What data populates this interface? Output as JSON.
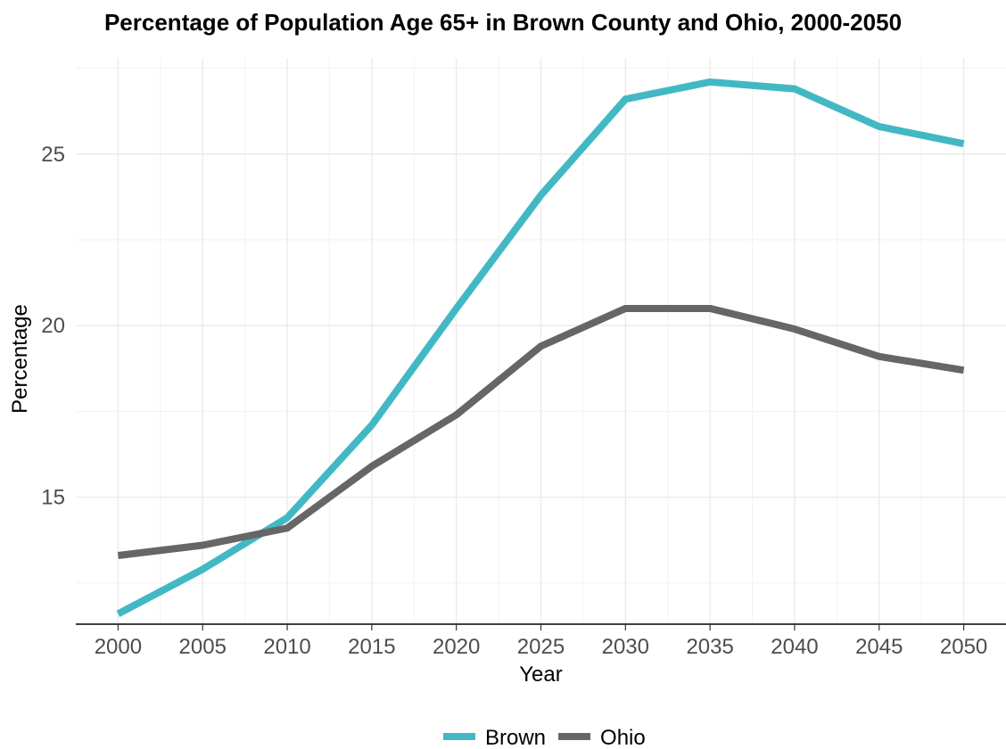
{
  "chart_data": {
    "type": "line",
    "title": "Percentage of Population Age 65+ in Brown County and Ohio, 2000-2050",
    "xlabel": "Year",
    "ylabel": "Percentage",
    "x": [
      2000,
      2005,
      2010,
      2015,
      2020,
      2025,
      2030,
      2035,
      2040,
      2045,
      2050
    ],
    "x_ticks": [
      "2000",
      "2005",
      "2010",
      "2015",
      "2020",
      "2025",
      "2030",
      "2035",
      "2040",
      "2045",
      "2050"
    ],
    "y_ticks": [
      "15",
      "20",
      "25"
    ],
    "xlim": [
      1997.5,
      2052.5
    ],
    "ylim": [
      11.3,
      27.8
    ],
    "grid": true,
    "legend_position": "bottom",
    "series": [
      {
        "name": "Brown",
        "color": "#43B8C5",
        "values": [
          11.6,
          12.9,
          14.4,
          17.1,
          20.5,
          23.8,
          26.6,
          27.1,
          26.9,
          25.8,
          25.3
        ]
      },
      {
        "name": "Ohio",
        "color": "#666666",
        "values": [
          13.3,
          13.6,
          14.1,
          15.9,
          17.4,
          19.4,
          20.5,
          20.5,
          19.9,
          19.1,
          18.7
        ]
      }
    ]
  }
}
